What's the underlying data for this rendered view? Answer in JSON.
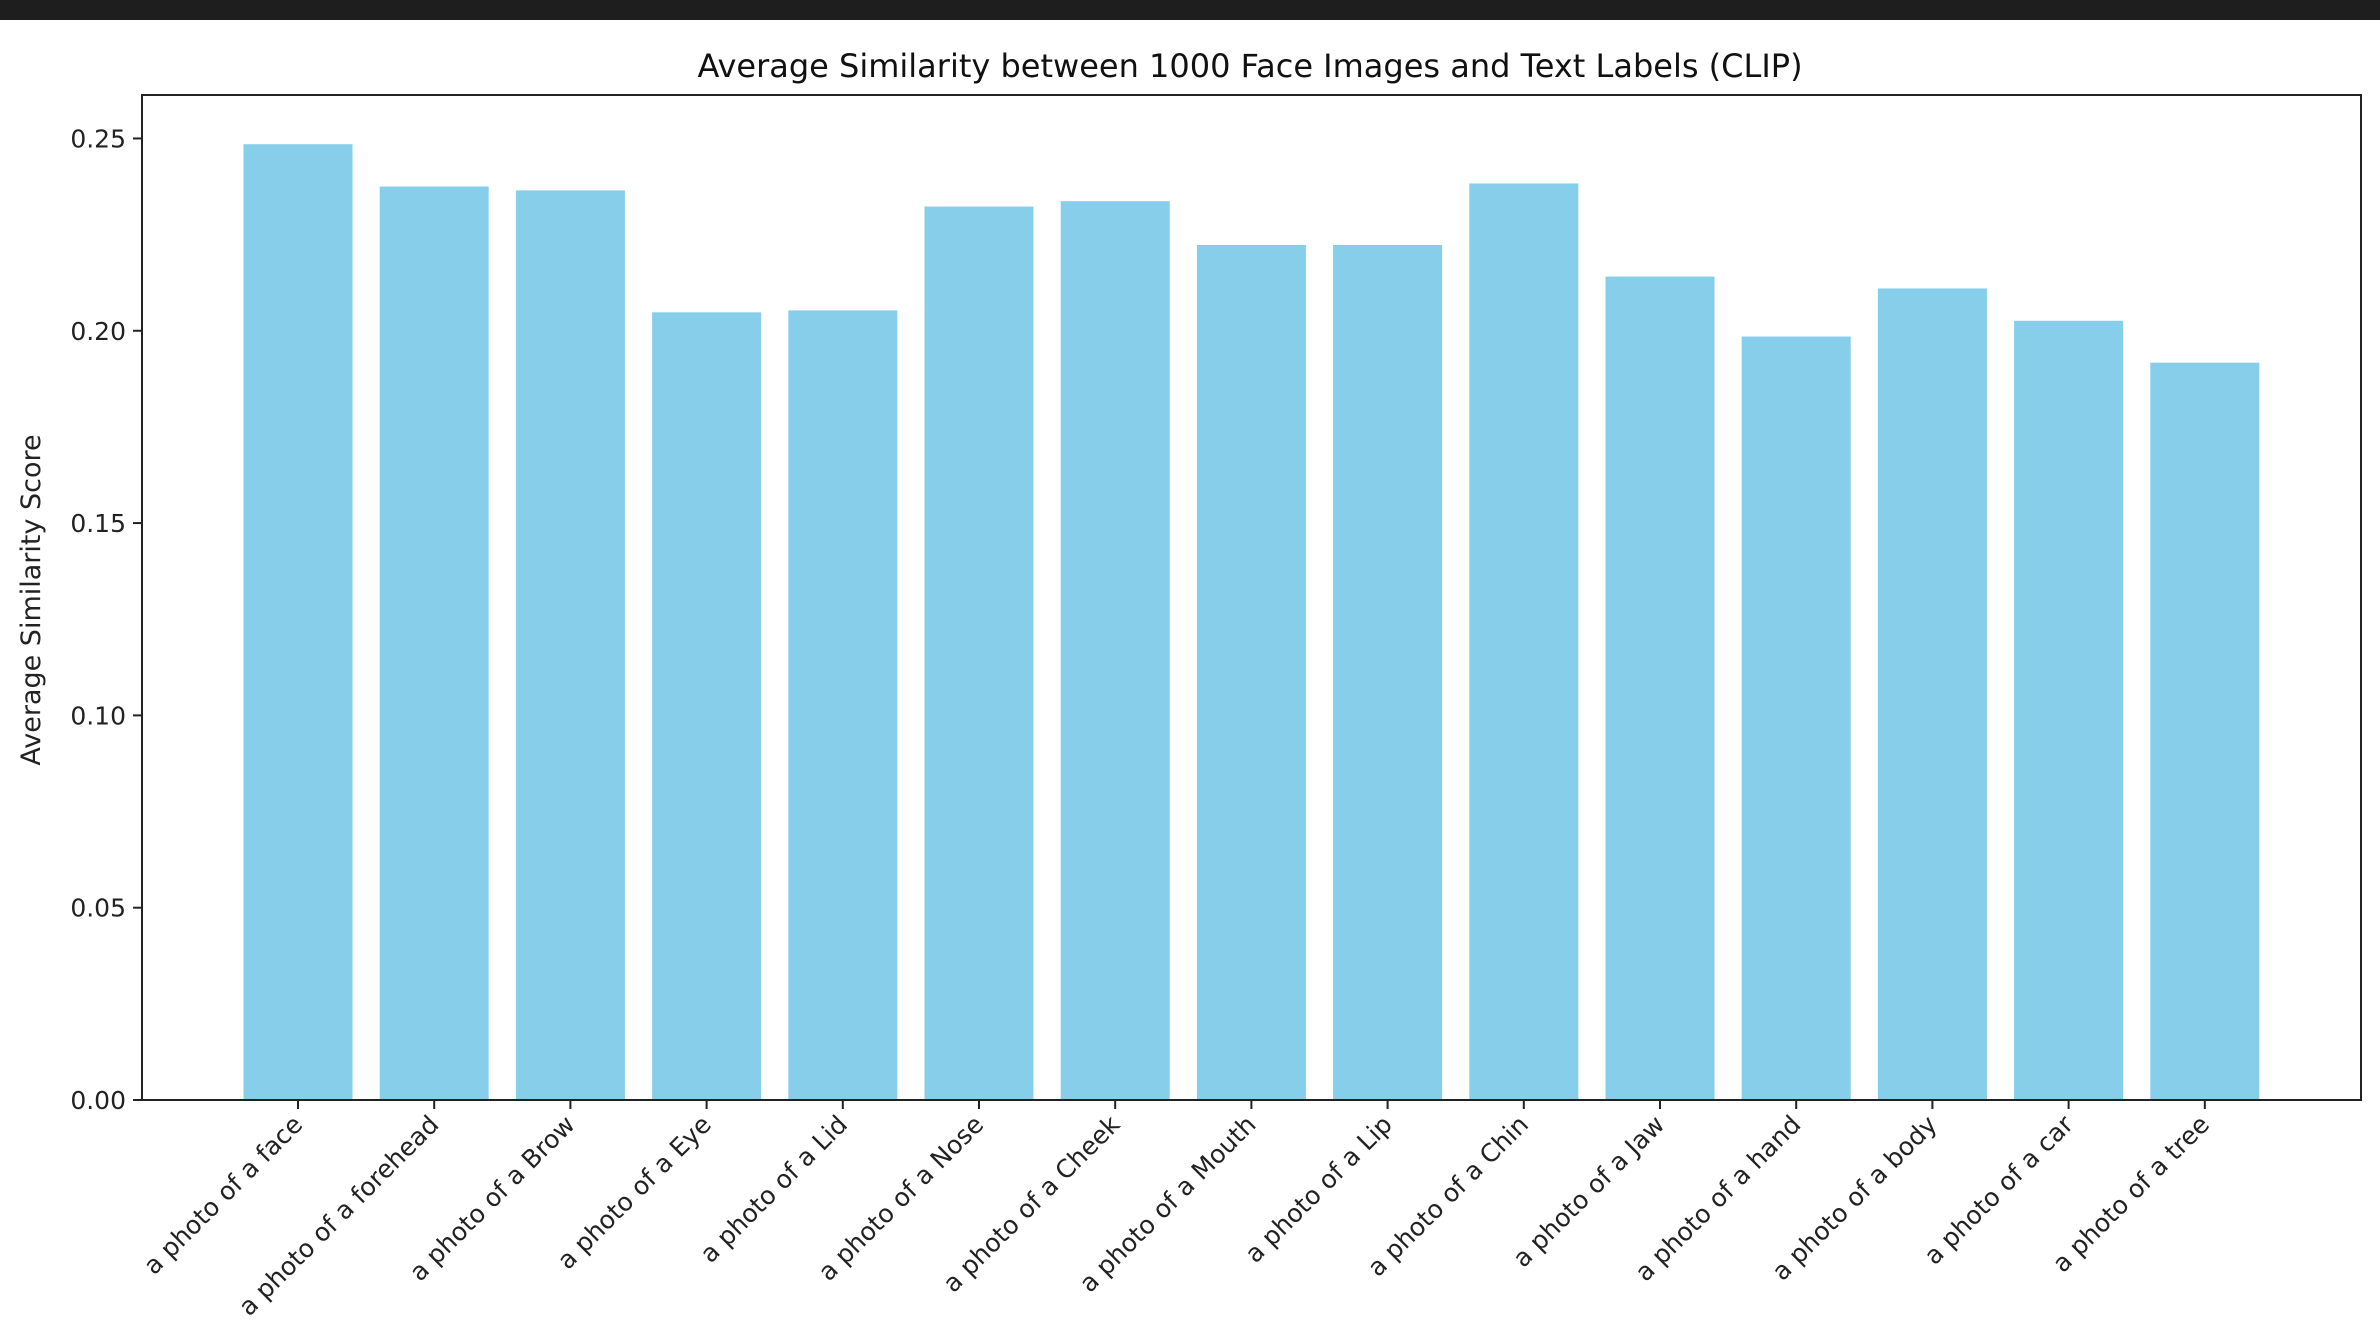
{
  "window": {
    "top_strip_color": "#1e1e1e"
  },
  "chart_data": {
    "type": "bar",
    "title": "Average Similarity between 1000 Face Images and Text Labels (CLIP)",
    "xlabel": "",
    "ylabel": "Average Similarity Score",
    "categories": [
      "a photo of a face",
      "a photo of a forehead",
      "a photo of a Brow",
      "a photo of a Eye",
      "a photo of a Lid",
      "a photo of a Nose",
      "a photo of a Cheek",
      "a photo of a Mouth",
      "a photo of a Lip",
      "a photo of a Chin",
      "a photo of a Jaw",
      "a photo of a hand",
      "a photo of a body",
      "a photo of a car",
      "a photo of a tree"
    ],
    "values": [
      0.2485,
      0.2375,
      0.2365,
      0.2048,
      0.2053,
      0.2323,
      0.2337,
      0.2223,
      0.2223,
      0.2383,
      0.2141,
      0.1985,
      0.211,
      0.2026,
      0.1917
    ],
    "ylim": [
      0,
      0.2613
    ],
    "yticks": [
      0.0,
      0.05,
      0.1,
      0.15,
      0.2,
      0.25
    ],
    "ytick_labels": [
      "0.00",
      "0.05",
      "0.10",
      "0.15",
      "0.20",
      "0.25"
    ],
    "grid": false,
    "legend": "none",
    "bar_color": "#87ceeb",
    "axis_color": "#222222"
  }
}
